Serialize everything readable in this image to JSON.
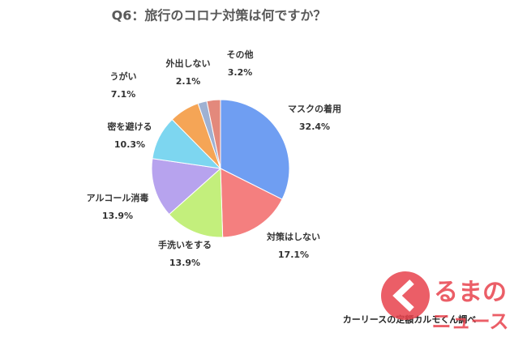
{
  "chart_data": {
    "type": "pie",
    "title": "Q6：旅行のコロナ対策は何ですか？",
    "categories": [
      "マスクの着用",
      "対策はしない",
      "手洗いをする",
      "アルコール消毒",
      "密を避ける",
      "うがい",
      "外出しない",
      "その他"
    ],
    "values": [
      32.4,
      17.1,
      13.9,
      13.9,
      10.3,
      7.1,
      2.1,
      3.2
    ],
    "value_labels": [
      "32.4%",
      "17.1%",
      "13.9%",
      "13.9%",
      "10.3%",
      "7.1%",
      "2.1%",
      "3.2%"
    ],
    "colors": [
      "#6f9ef2",
      "#f47f7f",
      "#c3ef7c",
      "#b7a3ee",
      "#7dd6f0",
      "#f5a556",
      "#9fb1d2",
      "#e3897c"
    ],
    "source": "カーリースの定額カルモくん調べ"
  },
  "logo": {
    "line1": "るまの",
    "line2": "ニュース"
  }
}
